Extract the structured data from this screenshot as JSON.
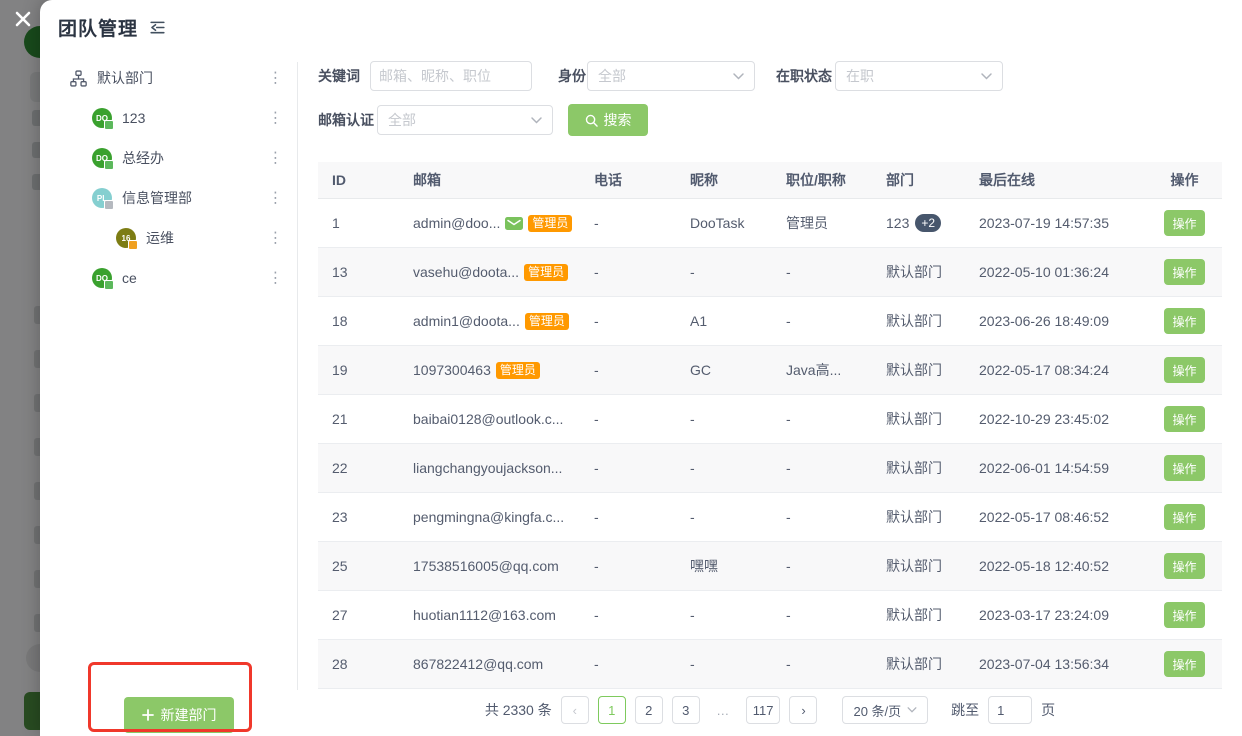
{
  "modal": {
    "title": "团队管理"
  },
  "icons": {
    "close": "✕",
    "dots": "⋮",
    "prev": "‹",
    "next": "›",
    "ellipsis_dots": "…"
  },
  "colors": {
    "accent_green": "#8cc868",
    "active_page_green": "#7eca5d",
    "admin_badge_orange": "#ff9900",
    "dept_badge_dark": "#47566c",
    "annotation_red": "#f0382b"
  },
  "sidebar": {
    "new_department_label": "新建部门",
    "items": [
      {
        "label": "默认部门",
        "level": 0,
        "avatar": {
          "type": "icon",
          "icon": "org-chart"
        }
      },
      {
        "label": "123",
        "level": 1,
        "avatar": {
          "type": "text",
          "text": "DO",
          "bg": "#3aa12e",
          "badge": "#5cb85c"
        }
      },
      {
        "label": "总经办",
        "level": 1,
        "avatar": {
          "type": "text",
          "text": "DO",
          "bg": "#3aa12e",
          "badge": "#5cb85c"
        }
      },
      {
        "label": "信息管理部",
        "level": 1,
        "avatar": {
          "type": "text",
          "text": "PL",
          "bg": "#85cfd0",
          "badge": "#b5b9bf"
        }
      },
      {
        "label": "运维",
        "level": 2,
        "avatar": {
          "type": "text",
          "text": "16",
          "bg": "#7d7d14",
          "badge": "#f0a020"
        }
      },
      {
        "label": "ce",
        "level": 1,
        "avatar": {
          "type": "text",
          "text": "DO",
          "bg": "#3aa12e",
          "badge": "#5cb85c"
        }
      }
    ]
  },
  "filters": {
    "keyword_label": "关键词",
    "keyword_placeholder": "邮箱、昵称、职位",
    "identity_label": "身份",
    "identity_value": "全部",
    "status_label": "在职状态",
    "status_value": "在职",
    "email_verify_label": "邮箱认证",
    "email_verify_value": "全部",
    "search_label": "搜索"
  },
  "table": {
    "headers": [
      "ID",
      "邮箱",
      "电话",
      "昵称",
      "职位/职称",
      "部门",
      "最后在线",
      "操作"
    ],
    "admin_badge_label": "管理员",
    "action_label": "操作",
    "rows": [
      {
        "id": "1",
        "email": "admin@doo...",
        "verified": true,
        "admin": true,
        "phone": "-",
        "nickname": "DooTask",
        "position": "管理员",
        "department": "123",
        "dept_extra": "+2",
        "last_online": "2023-07-19 14:57:35"
      },
      {
        "id": "13",
        "email": "vasehu@doota...",
        "verified": false,
        "admin": true,
        "phone": "-",
        "nickname": "-",
        "position": "-",
        "department": "默认部门",
        "dept_extra": null,
        "last_online": "2022-05-10 01:36:24"
      },
      {
        "id": "18",
        "email": "admin1@doota...",
        "verified": false,
        "admin": true,
        "phone": "-",
        "nickname": "A1",
        "position": "-",
        "department": "默认部门",
        "dept_extra": null,
        "last_online": "2023-06-26 18:49:09"
      },
      {
        "id": "19",
        "email": "1097300463",
        "verified": false,
        "admin": true,
        "phone": "-",
        "nickname": "GC",
        "position": "Java高...",
        "department": "默认部门",
        "dept_extra": null,
        "last_online": "2022-05-17 08:34:24"
      },
      {
        "id": "21",
        "email": "baibai0128@outlook.c...",
        "verified": false,
        "admin": false,
        "phone": "-",
        "nickname": "-",
        "position": "-",
        "department": "默认部门",
        "dept_extra": null,
        "last_online": "2022-10-29 23:45:02"
      },
      {
        "id": "22",
        "email": "liangchangyoujackson...",
        "verified": false,
        "admin": false,
        "phone": "-",
        "nickname": "-",
        "position": "-",
        "department": "默认部门",
        "dept_extra": null,
        "last_online": "2022-06-01 14:54:59"
      },
      {
        "id": "23",
        "email": "pengmingna@kingfa.c...",
        "verified": false,
        "admin": false,
        "phone": "-",
        "nickname": "-",
        "position": "-",
        "department": "默认部门",
        "dept_extra": null,
        "last_online": "2022-05-17 08:46:52"
      },
      {
        "id": "25",
        "email": "17538516005@qq.com",
        "verified": false,
        "admin": false,
        "phone": "-",
        "nickname": "嘿嘿",
        "position": "-",
        "department": "默认部门",
        "dept_extra": null,
        "last_online": "2022-05-18 12:40:52"
      },
      {
        "id": "27",
        "email": "huotian1112@163.com",
        "verified": false,
        "admin": false,
        "phone": "-",
        "nickname": "-",
        "position": "-",
        "department": "默认部门",
        "dept_extra": null,
        "last_online": "2023-03-17 23:24:09"
      },
      {
        "id": "28",
        "email": "867822412@qq.com",
        "verified": false,
        "admin": false,
        "phone": "-",
        "nickname": "-",
        "position": "-",
        "department": "默认部门",
        "dept_extra": null,
        "last_online": "2023-07-04 13:56:34"
      }
    ]
  },
  "pagination": {
    "total_label": "共 2330 条",
    "pages": [
      "1",
      "2",
      "3",
      "…",
      "117"
    ],
    "active_page": "1",
    "page_size_label": "20 条/页",
    "jump_label": "跳至",
    "jump_value": "1",
    "jump_suffix": "页"
  }
}
